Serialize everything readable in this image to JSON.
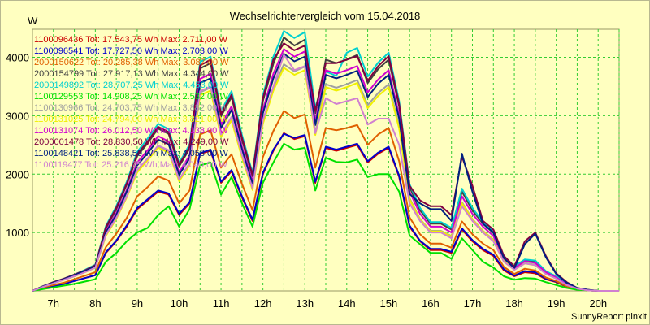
{
  "chart_data": {
    "type": "line",
    "title": "Wechselrichtervergleich vom 15.04.2018",
    "ylabel": "W",
    "footer": "SunnyReport pinxit",
    "colors": {
      "background": "#ffffc0",
      "grid": "#33cc33"
    },
    "grid": true,
    "legend_position": "top-left",
    "xlim": [
      "06:30",
      "20:30"
    ],
    "ylim": [
      0,
      4480
    ],
    "x_ticks": [
      "7h",
      "8h",
      "9h",
      "10h",
      "11h",
      "12h",
      "13h",
      "14h",
      "15h",
      "16h",
      "17h",
      "18h",
      "19h",
      "20h"
    ],
    "y_ticks": [
      1000,
      2000,
      3000,
      4000
    ],
    "x": [
      "06:30",
      "06:45",
      "07:00",
      "07:15",
      "07:30",
      "07:45",
      "08:00",
      "08:15",
      "08:30",
      "08:45",
      "09:00",
      "09:15",
      "09:30",
      "09:45",
      "10:00",
      "10:15",
      "10:30",
      "10:45",
      "11:00",
      "11:15",
      "11:30",
      "11:45",
      "12:00",
      "12:15",
      "12:30",
      "12:45",
      "13:00",
      "13:15",
      "13:30",
      "13:45",
      "14:00",
      "14:15",
      "14:30",
      "14:45",
      "15:00",
      "15:15",
      "15:30",
      "15:45",
      "16:00",
      "16:15",
      "16:30",
      "16:45",
      "17:00",
      "17:15",
      "17:30",
      "17:45",
      "18:00",
      "18:15",
      "18:30",
      "18:45",
      "19:00",
      "19:15",
      "19:30",
      "19:45",
      "20:00",
      "20:15",
      "20:30"
    ],
    "series": [
      {
        "name": "1100096436",
        "label": "1100096436 Tot: 17.543,75 Wh Max: 2.711,00 W",
        "color": "#cc0000",
        "values": [
          0,
          50,
          80,
          120,
          170,
          220,
          270,
          650,
          850,
          1100,
          1400,
          1550,
          1700,
          1650,
          1300,
          1500,
          2350,
          2400,
          1850,
          2050,
          1600,
          1200,
          2000,
          2400,
          2700,
          2600,
          2650,
          1850,
          2450,
          2400,
          2450,
          2500,
          2200,
          2350,
          2450,
          1950,
          1100,
          850,
          700,
          700,
          650,
          1050,
          850,
          700,
          600,
          350,
          250,
          320,
          300,
          200,
          150,
          70,
          30,
          10,
          0,
          0,
          0
        ]
      },
      {
        "name": "1100096541",
        "label": "1100096541 Tot: 17.727,50 Wh Max: 2.703,00 W",
        "color": "#0000cc",
        "values": [
          0,
          50,
          80,
          120,
          170,
          220,
          270,
          660,
          860,
          1120,
          1420,
          1570,
          1720,
          1670,
          1320,
          1520,
          2360,
          2420,
          1870,
          2070,
          1620,
          1220,
          2020,
          2420,
          2690,
          2620,
          2670,
          1870,
          2470,
          2420,
          2470,
          2520,
          2220,
          2370,
          2470,
          1970,
          1120,
          860,
          720,
          720,
          670,
          1070,
          870,
          720,
          620,
          370,
          260,
          340,
          320,
          210,
          160,
          80,
          30,
          10,
          0,
          0,
          0
        ]
      },
      {
        "name": "2000150622",
        "label": "2000150622 Tot: 20.285,38 Wh Max: 3.087,00 W",
        "color": "#e06000",
        "values": [
          0,
          60,
          100,
          140,
          200,
          260,
          320,
          750,
          980,
          1250,
          1620,
          1780,
          1960,
          1890,
          1500,
          1720,
          2680,
          2750,
          2110,
          2340,
          1830,
          1380,
          2290,
          2740,
          3080,
          2960,
          3020,
          2110,
          2790,
          2750,
          2790,
          2840,
          2500,
          2680,
          2790,
          2220,
          1260,
          970,
          810,
          810,
          740,
          1190,
          970,
          810,
          700,
          410,
          290,
          380,
          350,
          230,
          170,
          80,
          30,
          10,
          0,
          0,
          0
        ]
      },
      {
        "name": "2000154799",
        "label": "2000154799 Tot: 27.917,13 Wh Max: 4.344,00 W",
        "color": "#404040",
        "values": [
          0,
          80,
          150,
          210,
          280,
          350,
          440,
          1070,
          1400,
          1820,
          2310,
          2530,
          2780,
          2690,
          2130,
          2440,
          3810,
          3900,
          2990,
          3320,
          2590,
          1960,
          3250,
          3890,
          4340,
          4200,
          4300,
          3040,
          3960,
          3900,
          3960,
          4040,
          3560,
          3800,
          3960,
          3160,
          1780,
          1380,
          1150,
          1150,
          1050,
          1700,
          1380,
          1150,
          990,
          580,
          410,
          530,
          500,
          330,
          240,
          110,
          40,
          10,
          0,
          0,
          0
        ]
      },
      {
        "name": "2000149892",
        "label": "2000149892 Tot: 28.707,25 Wh Max: 4.453,00 W",
        "color": "#00d0d0",
        "values": [
          0,
          80,
          150,
          210,
          280,
          360,
          450,
          1110,
          1450,
          1870,
          2380,
          2610,
          2860,
          2770,
          2190,
          2510,
          3920,
          4010,
          3080,
          3420,
          2670,
          2020,
          3350,
          4010,
          4450,
          4330,
          4430,
          3130,
          3760,
          3680,
          4080,
          4160,
          3670,
          3910,
          4080,
          3250,
          1830,
          1420,
          1180,
          1180,
          1080,
          1750,
          1420,
          1180,
          1020,
          600,
          420,
          540,
          520,
          340,
          250,
          120,
          40,
          10,
          0,
          0,
          0
        ]
      },
      {
        "name": "1100129553",
        "label": "1100129553 Tot: 14.908,25 Wh Max: 2.532,00 W",
        "color": "#00e000",
        "values": [
          0,
          30,
          60,
          90,
          120,
          160,
          200,
          500,
          650,
          850,
          1000,
          1080,
          1300,
          1450,
          1100,
          1400,
          2150,
          2200,
          1650,
          1950,
          1500,
          1100,
          1850,
          2200,
          2520,
          2420,
          2450,
          1720,
          2280,
          2210,
          2200,
          2250,
          1950,
          2000,
          2000,
          1700,
          950,
          800,
          650,
          650,
          550,
          900,
          700,
          500,
          400,
          250,
          190,
          220,
          210,
          150,
          100,
          50,
          20,
          10,
          0,
          0,
          0
        ]
      },
      {
        "name": "1100130966",
        "label": "1100130966 Tot: 24.703,75 Wh Max: 3.882,00 W",
        "color": "#a0a0a0",
        "values": [
          0,
          70,
          130,
          190,
          250,
          320,
          400,
          960,
          1250,
          1620,
          2060,
          2270,
          2480,
          2400,
          1900,
          2180,
          3400,
          3480,
          2670,
          2960,
          2310,
          1750,
          2900,
          3480,
          3880,
          3760,
          3840,
          2710,
          3540,
          3480,
          3540,
          3610,
          3180,
          3390,
          3540,
          2820,
          1590,
          1230,
          1030,
          1030,
          940,
          1520,
          1230,
          1030,
          880,
          520,
          370,
          480,
          450,
          300,
          220,
          100,
          40,
          10,
          0,
          0,
          0
        ]
      },
      {
        "name": "1100131025",
        "label": "1100131025 Tot: 24.794,00 Wh Max: 3.821,00 W",
        "color": "#f0f000",
        "values": [
          0,
          70,
          130,
          190,
          250,
          320,
          400,
          940,
          1230,
          1600,
          2030,
          2240,
          2450,
          2370,
          1880,
          2150,
          3350,
          3430,
          2640,
          2920,
          2280,
          1730,
          2860,
          3430,
          3820,
          3700,
          3780,
          2670,
          3490,
          3430,
          3490,
          3560,
          3130,
          3340,
          3490,
          2780,
          1570,
          1220,
          1020,
          1020,
          930,
          1500,
          1220,
          1020,
          870,
          520,
          370,
          470,
          440,
          300,
          220,
          100,
          40,
          10,
          0,
          0,
          0
        ]
      },
      {
        "name": "1100131074",
        "label": "1100131074 Tot: 26.012,50 Wh Max: 4.138,00 W",
        "color": "#d000d0",
        "values": [
          0,
          75,
          140,
          200,
          270,
          340,
          420,
          1020,
          1330,
          1730,
          2200,
          2410,
          2650,
          2560,
          2030,
          2320,
          3630,
          3720,
          2850,
          3160,
          2470,
          1870,
          3100,
          3720,
          4140,
          4010,
          4100,
          2900,
          3780,
          3720,
          3780,
          3850,
          3400,
          3620,
          3780,
          3010,
          1700,
          1320,
          1100,
          1100,
          1000,
          1620,
          1320,
          1100,
          940,
          560,
          390,
          510,
          480,
          320,
          230,
          110,
          40,
          10,
          0,
          0,
          0
        ]
      },
      {
        "name": "2000001478",
        "label": "2000001478 Tot: 28.830,50 Wh Max: 4.249,00 W",
        "color": "#800040",
        "values": [
          0,
          80,
          150,
          210,
          280,
          350,
          440,
          1090,
          1420,
          1840,
          2340,
          2560,
          2810,
          2720,
          2160,
          2470,
          3860,
          3960,
          3030,
          3360,
          2620,
          1990,
          3300,
          3960,
          4240,
          4120,
          4200,
          3080,
          3900,
          3900,
          3960,
          4020,
          3600,
          3850,
          4020,
          3200,
          1800,
          1550,
          1450,
          1450,
          1300,
          2300,
          1800,
          1200,
          1050,
          600,
          420,
          850,
          1000,
          600,
          300,
          150,
          50,
          20,
          0,
          0,
          0
        ]
      },
      {
        "name": "1100148421",
        "label": "1100148421 Tot: 25.838,50 Wh Max: 4.058,00 W",
        "color": "#002080",
        "values": [
          0,
          75,
          140,
          200,
          270,
          340,
          420,
          1000,
          1300,
          1700,
          2150,
          2360,
          2590,
          2510,
          1990,
          2270,
          3560,
          3640,
          2790,
          3100,
          2420,
          1830,
          3040,
          3640,
          4060,
          3930,
          4010,
          2840,
          3700,
          3640,
          3700,
          3770,
          3320,
          3550,
          3700,
          2950,
          1660,
          1500,
          1400,
          1400,
          1200,
          2350,
          1700,
          1150,
          1000,
          560,
          390,
          800,
          980,
          580,
          290,
          140,
          50,
          20,
          0,
          0,
          0
        ]
      },
      {
        "name": "1100119477",
        "label": "1100119477 Tot: 25.216,75 Wh Max: 4.040,00 W",
        "color": "#d080d0",
        "values": [
          0,
          70,
          130,
          190,
          250,
          320,
          400,
          960,
          1250,
          1620,
          2070,
          2270,
          2490,
          2410,
          1910,
          2190,
          3420,
          3500,
          2680,
          2980,
          2330,
          1760,
          2920,
          3500,
          4040,
          3780,
          3850,
          2700,
          3300,
          3200,
          3250,
          3300,
          2850,
          2950,
          2950,
          2500,
          1500,
          1200,
          1000,
          1000,
          900,
          1450,
          1200,
          1000,
          850,
          500,
          360,
          470,
          440,
          290,
          210,
          100,
          40,
          10,
          0,
          0,
          0
        ]
      }
    ]
  }
}
